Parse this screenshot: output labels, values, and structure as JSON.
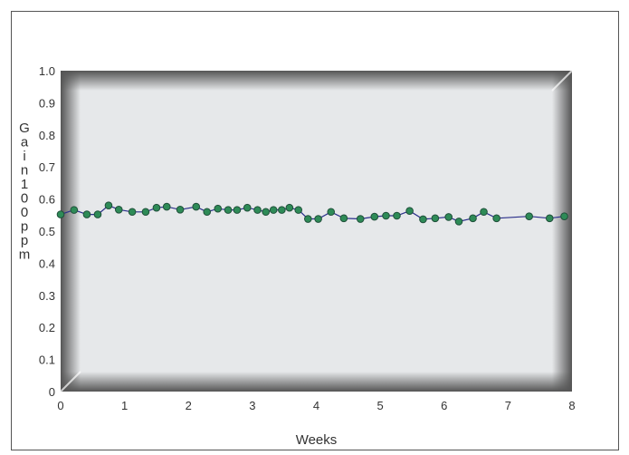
{
  "chart_data": {
    "type": "line",
    "title": "",
    "xlabel": "Weeks",
    "ylabel": "Gain100ppm",
    "xlim": [
      0,
      8
    ],
    "ylim": [
      0,
      1.0
    ],
    "x_ticks": [
      "0",
      "1",
      "2",
      "3",
      "4",
      "5",
      "6",
      "7",
      "8"
    ],
    "y_ticks": [
      "0",
      "0.1",
      "0.2",
      "0.3",
      "0.4",
      "0.5",
      "0.6",
      "0.7",
      "0.8",
      "0.9",
      "1.0"
    ],
    "grid": false,
    "legend": "none",
    "colors": {
      "line": "#2a2f8a",
      "marker": "#2e8b57",
      "marker_edge": "#1f4f3a",
      "plot_bg": "#e6e8ea"
    },
    "series": [
      {
        "x": [
          0.0,
          0.21,
          0.41,
          0.58,
          0.75,
          0.91,
          1.12,
          1.33,
          1.5,
          1.66,
          1.87,
          2.12,
          2.29,
          2.46,
          2.62,
          2.76,
          2.92,
          3.08,
          3.21,
          3.33,
          3.46,
          3.58,
          3.72,
          3.87,
          4.03,
          4.23,
          4.43,
          4.69,
          4.91,
          5.09,
          5.26,
          5.46,
          5.67,
          5.86,
          6.07,
          6.23,
          6.45,
          6.62,
          6.82,
          7.33,
          7.65,
          7.88
        ],
        "y": [
          0.552,
          0.566,
          0.552,
          0.552,
          0.58,
          0.567,
          0.56,
          0.56,
          0.573,
          0.576,
          0.567,
          0.576,
          0.56,
          0.57,
          0.566,
          0.566,
          0.573,
          0.566,
          0.56,
          0.566,
          0.566,
          0.573,
          0.566,
          0.538,
          0.538,
          0.56,
          0.54,
          0.538,
          0.545,
          0.548,
          0.548,
          0.563,
          0.537,
          0.54,
          0.544,
          0.53,
          0.54,
          0.56,
          0.54,
          0.546,
          0.54,
          0.546
        ]
      }
    ]
  }
}
